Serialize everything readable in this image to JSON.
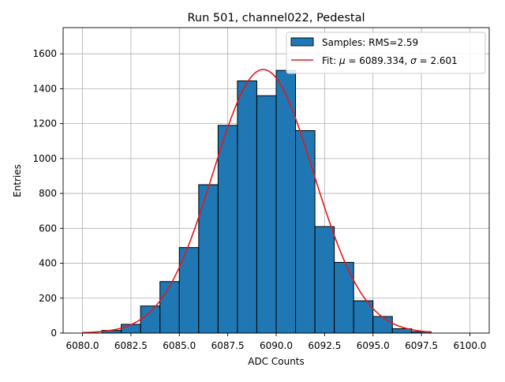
{
  "chart_data": {
    "type": "bar",
    "title": "Run 501, channel022, Pedestal",
    "xlabel": "ADC Counts",
    "ylabel": "Entries",
    "xlim": [
      6079.0,
      6101.0
    ],
    "ylim": [
      0,
      1750
    ],
    "xticks": [
      6080.0,
      6082.5,
      6085.0,
      6087.5,
      6090.0,
      6092.5,
      6095.0,
      6097.5,
      6100.0
    ],
    "xtick_labels": [
      "6080.0",
      "6082.5",
      "6085.0",
      "6087.5",
      "6090.0",
      "6092.5",
      "6095.0",
      "6097.5",
      "6100.0"
    ],
    "yticks": [
      0,
      200,
      400,
      600,
      800,
      1000,
      1200,
      1400,
      1600
    ],
    "grid": true,
    "legend_position": "top-right",
    "histogram": {
      "name": "Samples: RMS=2.59",
      "color": "#1f77b4",
      "edge_color": "#000000",
      "bin_edges": [
        6081,
        6082,
        6083,
        6084,
        6085,
        6086,
        6087,
        6088,
        6089,
        6090,
        6091,
        6092,
        6093,
        6094,
        6095,
        6096,
        6097,
        6098
      ],
      "counts": [
        15,
        50,
        155,
        295,
        490,
        850,
        1190,
        1445,
        1360,
        1505,
        1160,
        610,
        405,
        185,
        95,
        25,
        8
      ]
    },
    "fit": {
      "name_prefix": "Fit: ",
      "name_mu": "μ",
      "name_mid": " = 6089.334, ",
      "name_sigma": "σ",
      "name_suffix": " = 2.601",
      "mu": 6089.334,
      "sigma": 2.601,
      "amplitude": 1510,
      "x_range": [
        6080,
        6098
      ],
      "color": "#e31a1c"
    }
  }
}
